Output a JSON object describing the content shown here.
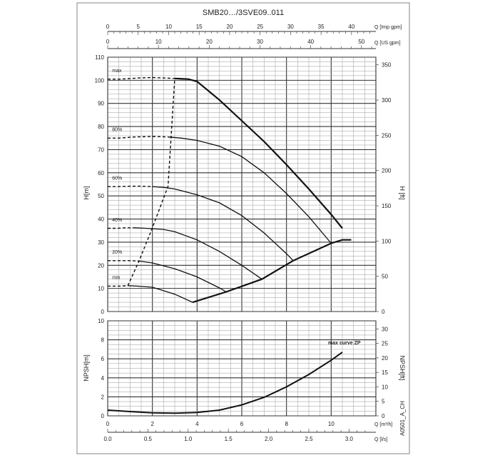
{
  "title": "SMB20…/3SVE09..011",
  "code": "A0501_A_CH",
  "colors": {
    "line": "#111111",
    "grid_major": "#333333",
    "grid_minor": "#9a9a9a",
    "frame": "#555555"
  },
  "chart_data": [
    {
      "type": "line",
      "name": "head",
      "ylabel_left": "H[m]",
      "ylabel_right": "H [ft]",
      "ylim": [
        0,
        110
      ],
      "xlim_m3h": [
        0,
        12
      ],
      "yticks_left": [
        "0",
        "10",
        "20",
        "30",
        "40",
        "50",
        "60",
        "70",
        "80",
        "90",
        "100",
        "110"
      ],
      "yticks_right": [
        "0",
        "50",
        "100",
        "150",
        "200",
        "250",
        "300",
        "350"
      ],
      "top_axes": [
        {
          "label": "Q [Imp gpm]",
          "ticks": [
            "0",
            "5",
            "10",
            "15",
            "20",
            "25",
            "30",
            "35",
            "40"
          ]
        },
        {
          "label": "Q [US gpm]",
          "ticks": [
            "0",
            "10",
            "20",
            "30",
            "40",
            "50"
          ]
        }
      ],
      "curve_labels": [
        "max",
        "80%",
        "60%",
        "40%",
        "20%",
        "min"
      ],
      "series": [
        {
          "name": "max",
          "x": [
            0,
            0.6,
            1.4,
            2,
            2.5,
            3.0,
            3.6,
            4.0,
            5,
            6,
            7,
            8,
            9,
            10,
            10.5
          ],
          "y": [
            100.5,
            100.5,
            101,
            101.2,
            101,
            100.8,
            100.5,
            99.5,
            91.5,
            82.5,
            73.5,
            63.5,
            53,
            42,
            36
          ]
        },
        {
          "name": "80%",
          "x": [
            0,
            0.5,
            1.2,
            2,
            2.7,
            3.3,
            4,
            5,
            6,
            7,
            8,
            9,
            10.0
          ],
          "y": [
            75,
            75,
            75.5,
            75.7,
            75.5,
            75,
            74,
            71.5,
            67,
            60,
            51,
            41,
            29.5
          ]
        },
        {
          "name": "60%",
          "x": [
            0,
            0.4,
            1.0,
            1.5,
            2.0,
            2.5,
            3,
            4,
            5,
            6,
            7,
            8,
            8.3
          ],
          "y": [
            54,
            54,
            54.2,
            54.2,
            54,
            53.7,
            53,
            50.5,
            47,
            41.5,
            34,
            25,
            22
          ]
        },
        {
          "name": "40%",
          "x": [
            0,
            0.4,
            0.8,
            1.2,
            1.7,
            2.5,
            3,
            4,
            5,
            6,
            6.9
          ],
          "y": [
            36,
            36,
            36.2,
            36.2,
            36,
            35.5,
            34.5,
            31,
            26,
            20,
            14
          ]
        },
        {
          "name": "20%",
          "x": [
            0,
            0.3,
            0.6,
            1.0,
            1.4,
            2,
            3,
            4,
            5,
            5.3
          ],
          "y": [
            22,
            22,
            22,
            22,
            21.8,
            21,
            18.5,
            15,
            10.2,
            8.5
          ]
        },
        {
          "name": "min",
          "x": [
            0,
            0.6,
            0.9,
            1.3,
            2,
            3,
            3.8
          ],
          "y": [
            11,
            11,
            11.2,
            11,
            10.5,
            7.5,
            4
          ]
        },
        {
          "name": "end of curve",
          "x": [
            3.8,
            5.3,
            6.9,
            8.3,
            10.0,
            10.5,
            10.9
          ],
          "y": [
            4,
            8.5,
            14,
            22,
            29.5,
            31,
            31
          ]
        },
        {
          "name": "max boundary",
          "x": [
            0.9,
            1.4,
            2.0,
            2.7,
            3.0
          ],
          "y": [
            11.2,
            21.8,
            36.2,
            54.2,
            100.8
          ]
        }
      ]
    },
    {
      "type": "line",
      "name": "npsh",
      "ylabel_left": "NPSH[m]",
      "ylabel_right": "NPSH[ft]",
      "ylim": [
        0,
        10
      ],
      "yticks_left": [
        "0",
        "2",
        "4",
        "6",
        "8",
        "10"
      ],
      "yticks_right": [
        "0",
        "5",
        "10",
        "15",
        "20",
        "25",
        "30"
      ],
      "annotation": "max curve ZP",
      "bottom_axes": [
        {
          "label": "Q [m³/h]",
          "ticks": [
            "0",
            "2",
            "4",
            "6",
            "8",
            "10"
          ]
        },
        {
          "label": "Q [l/s]",
          "ticks": [
            "0.0",
            "0.5",
            "1.0",
            "1.5",
            "2.0",
            "2.5",
            "3.0"
          ]
        }
      ],
      "series": [
        {
          "name": "max curve ZP",
          "x": [
            0,
            1,
            2,
            3,
            4,
            5,
            6,
            7,
            8,
            9,
            10,
            10.5
          ],
          "y": [
            0.6,
            0.45,
            0.32,
            0.28,
            0.35,
            0.6,
            1.15,
            1.95,
            3.05,
            4.35,
            5.85,
            6.7
          ]
        }
      ]
    }
  ]
}
